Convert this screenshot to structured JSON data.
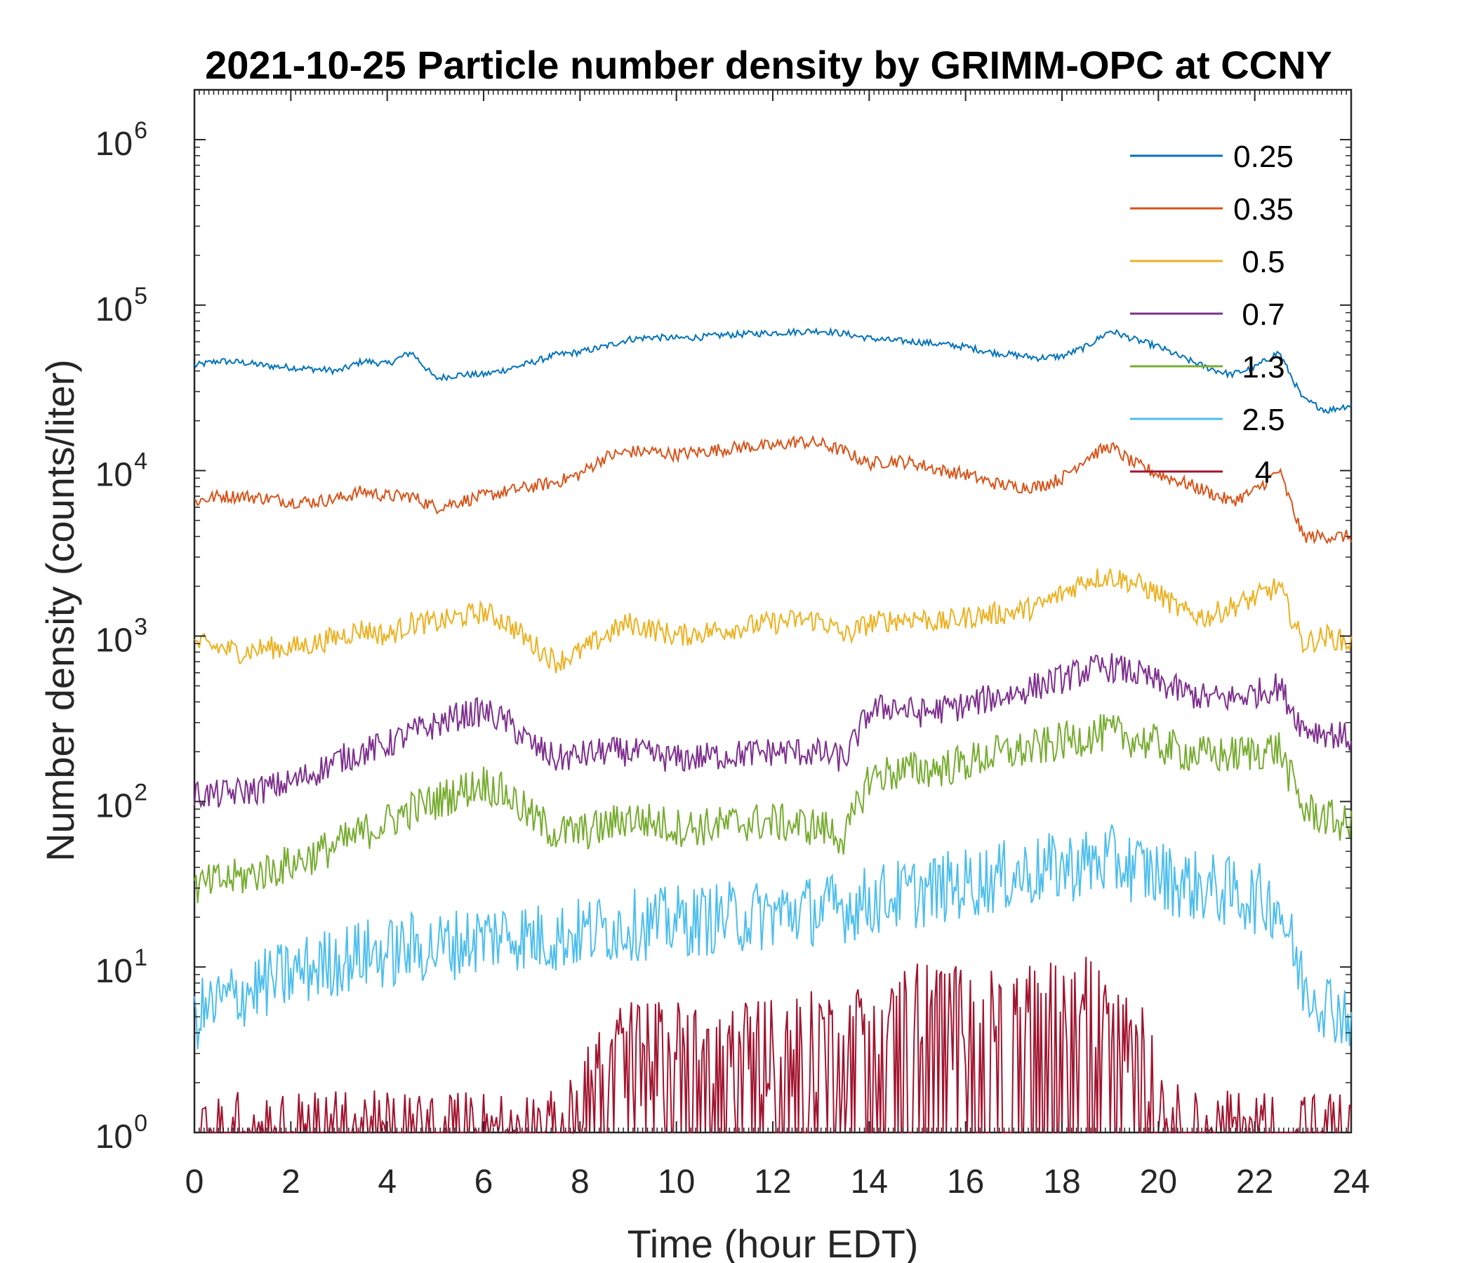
{
  "chart_data": {
    "type": "line",
    "title": "2021-10-25 Particle number density by GRIMM-OPC at CCNY",
    "xlabel": "Time (hour EDT)",
    "ylabel": "Number density (counts/liter)",
    "xlim": [
      0,
      24
    ],
    "ylim": [
      1,
      2000000
    ],
    "yscale": "log",
    "x_ticks": [
      "0",
      "2",
      "4",
      "6",
      "8",
      "10",
      "12",
      "14",
      "16",
      "18",
      "20",
      "22",
      "24"
    ],
    "y_ticks": [
      {
        "base": "10",
        "exp": "0"
      },
      {
        "base": "10",
        "exp": "1"
      },
      {
        "base": "10",
        "exp": "2"
      },
      {
        "base": "10",
        "exp": "3"
      },
      {
        "base": "10",
        "exp": "4"
      },
      {
        "base": "10",
        "exp": "5"
      },
      {
        "base": "10",
        "exp": "6"
      }
    ],
    "legend_position": "top-right",
    "x": [
      0,
      0.5,
      1,
      1.5,
      2,
      2.5,
      3,
      3.5,
      4,
      4.5,
      5,
      5.5,
      6,
      6.5,
      7,
      7.5,
      8,
      8.5,
      9,
      9.5,
      10,
      10.5,
      11,
      11.5,
      12,
      12.5,
      13,
      13.5,
      14,
      14.5,
      15,
      15.5,
      16,
      16.5,
      17,
      17.5,
      18,
      18.5,
      19,
      19.5,
      20,
      20.5,
      21,
      21.5,
      22,
      22.5,
      23,
      23.5,
      24
    ],
    "series": [
      {
        "name": "0.25",
        "color": "#0072BD",
        "values": [
          43000,
          46000,
          45000,
          43000,
          42000,
          41000,
          40000,
          46000,
          44000,
          52000,
          36000,
          38000,
          38000,
          41000,
          45000,
          50000,
          52000,
          56000,
          62000,
          64000,
          63000,
          64000,
          66000,
          67000,
          68000,
          69000,
          70000,
          67000,
          63000,
          61000,
          60000,
          58000,
          56000,
          52000,
          50000,
          48000,
          49000,
          56000,
          70000,
          62000,
          56000,
          48000,
          42000,
          38000,
          42000,
          52000,
          27000,
          23000,
          25000
        ]
      },
      {
        "name": "0.35",
        "color": "#D95319",
        "values": [
          6500,
          7000,
          7000,
          6800,
          6500,
          6500,
          6800,
          7500,
          7000,
          7000,
          6000,
          6500,
          7000,
          7500,
          8000,
          8500,
          9500,
          12000,
          13000,
          13000,
          12500,
          13000,
          13500,
          14000,
          14000,
          15000,
          14500,
          13000,
          11000,
          11500,
          11000,
          10000,
          9500,
          8500,
          8000,
          8000,
          9000,
          12000,
          14000,
          11000,
          9500,
          8500,
          7500,
          6500,
          7500,
          10000,
          4000,
          4000,
          4000
        ]
      },
      {
        "name": "0.5",
        "color": "#EDB120",
        "values": [
          900,
          850,
          800,
          850,
          850,
          900,
          1000,
          1100,
          1000,
          1200,
          1200,
          1300,
          1400,
          1200,
          900,
          700,
          800,
          1000,
          1200,
          1100,
          1000,
          1050,
          1100,
          1150,
          1200,
          1250,
          1250,
          1000,
          1200,
          1250,
          1300,
          1200,
          1300,
          1350,
          1400,
          1500,
          1800,
          2200,
          2300,
          2100,
          1800,
          1400,
          1300,
          1500,
          1700,
          2000,
          900,
          1000,
          900
        ]
      },
      {
        "name": "0.7",
        "color": "#7E2F8E",
        "values": [
          110,
          110,
          115,
          120,
          130,
          150,
          180,
          200,
          220,
          260,
          290,
          330,
          350,
          300,
          220,
          180,
          190,
          200,
          200,
          190,
          180,
          185,
          190,
          195,
          200,
          200,
          195,
          180,
          350,
          380,
          340,
          360,
          380,
          420,
          450,
          500,
          550,
          620,
          650,
          600,
          520,
          460,
          420,
          420,
          450,
          500,
          280,
          260,
          240
        ]
      },
      {
        "name": "1.3",
        "color": "#77AC30",
        "values": [
          30,
          33,
          35,
          38,
          42,
          48,
          55,
          65,
          75,
          90,
          100,
          115,
          130,
          110,
          80,
          65,
          65,
          70,
          80,
          75,
          70,
          70,
          72,
          75,
          75,
          72,
          70,
          60,
          140,
          150,
          155,
          160,
          170,
          190,
          200,
          210,
          230,
          250,
          260,
          240,
          220,
          200,
          190,
          190,
          200,
          210,
          90,
          80,
          70
        ]
      },
      {
        "name": "2.5",
        "color": "#4DBEEE",
        "values": [
          5,
          6,
          7,
          8,
          9,
          10,
          11,
          12,
          12,
          13,
          13,
          14,
          15,
          16,
          15,
          15,
          16,
          17,
          18,
          18,
          19,
          19,
          20,
          20,
          21,
          22,
          22,
          23,
          25,
          27,
          28,
          30,
          32,
          34,
          36,
          38,
          40,
          42,
          44,
          40,
          36,
          32,
          30,
          28,
          26,
          24,
          8,
          6,
          5
        ]
      },
      {
        "name": "4",
        "color": "#A2142F",
        "values": [
          1,
          1,
          1,
          1,
          1,
          1,
          1,
          1,
          1,
          1,
          1,
          1,
          1,
          1,
          1,
          1,
          1.3,
          3,
          3.5,
          3.5,
          3.5,
          3.5,
          3.5,
          3.8,
          3.8,
          4,
          4,
          3.5,
          5,
          5.5,
          6,
          6,
          5.5,
          5.5,
          5.8,
          6,
          6,
          6.5,
          6,
          5.5,
          1.5,
          1,
          1,
          1,
          1,
          1,
          1,
          1,
          1
        ]
      }
    ]
  }
}
